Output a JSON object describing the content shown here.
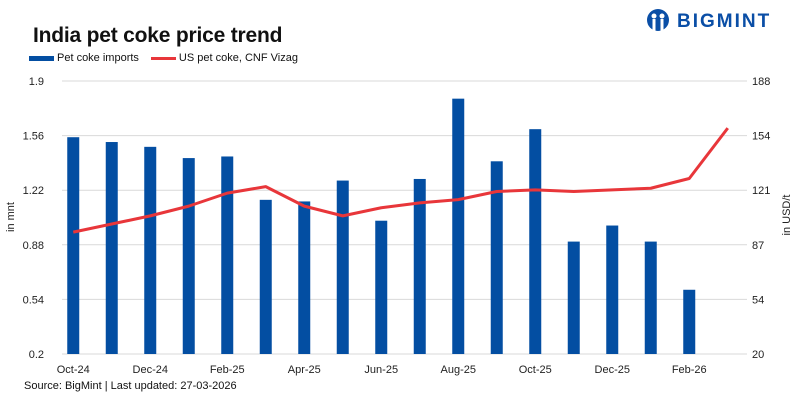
{
  "title": "India pet coke price trend",
  "logo_text": "BIGMINT",
  "source": "Source: BigMint | Last updated: 27-03-2026",
  "colors": {
    "bars": "#034ea2",
    "line": "#e8363a",
    "grid": "#d9d9d9"
  },
  "chart_data": {
    "type": "bar+line",
    "title": "India pet coke price trend",
    "categories": [
      "Oct-24",
      "Nov-24",
      "Dec-24",
      "Jan-25",
      "Feb-25",
      "Mar-25",
      "Apr-25",
      "May-25",
      "Jun-25",
      "Jul-25",
      "Aug-25",
      "Sep-25",
      "Oct-25",
      "Nov-25",
      "Dec-25",
      "Jan-26",
      "Feb-26",
      "Mar-26"
    ],
    "tick_labels": [
      "Oct-24",
      "Dec-24",
      "Feb-25",
      "Apr-25",
      "Jun-25",
      "Aug-25",
      "Oct-25",
      "Dec-25",
      "Feb-26"
    ],
    "series": [
      {
        "name": "Pet coke imports",
        "type": "bar",
        "axis": "left",
        "values": [
          1.55,
          1.52,
          1.49,
          1.42,
          1.43,
          1.16,
          1.15,
          1.28,
          1.03,
          1.29,
          1.79,
          1.4,
          1.6,
          0.9,
          1.0,
          0.9,
          0.6,
          null
        ]
      },
      {
        "name": "US pet coke, CNF Vizag",
        "type": "line",
        "axis": "right",
        "values": [
          95,
          100,
          105,
          111,
          119,
          123,
          111,
          105,
          110,
          113,
          115,
          120,
          121,
          120,
          121,
          122,
          128,
          159
        ]
      }
    ],
    "ylabel_left": "in mnt",
    "ylabel_right": "in USD/t",
    "ylim_left": [
      0.2,
      1.9
    ],
    "yticks_left": [
      "0.2",
      "0.54",
      "0.88",
      "1.22",
      "1.56",
      "1.9"
    ],
    "ylim_right": [
      20,
      188
    ],
    "yticks_right": [
      "20",
      "54",
      "87",
      "121",
      "154",
      "188"
    ],
    "grid": true,
    "legend": "top-left"
  }
}
